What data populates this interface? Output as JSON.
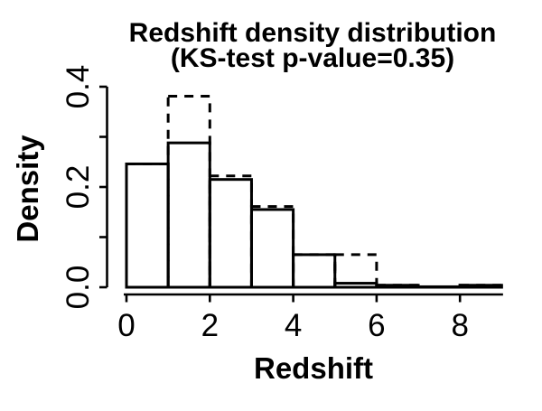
{
  "figure": {
    "title_line1": "Redshift density distribution",
    "title_line2": "(KS-test p-value=0.35)",
    "xlabel": "Redshift",
    "ylabel": "Density"
  },
  "chart_data": {
    "type": "bar",
    "subtype": "histogram-overlay",
    "title": "Redshift density distribution (KS-test p-value=0.35)",
    "xlabel": "Redshift",
    "ylabel": "Density",
    "bin_edges": [
      0,
      1,
      2,
      3,
      4,
      5,
      6,
      7,
      8,
      9
    ],
    "series": [
      {
        "name": "solid-histogram",
        "line_style": "solid",
        "densities": [
          0.246,
          0.288,
          0.215,
          0.155,
          0.065,
          0.008,
          0.004,
          0.001,
          0.004
        ]
      },
      {
        "name": "dashed-histogram",
        "line_style": "dashed",
        "densities": [
          0.246,
          0.381,
          0.222,
          0.161,
          0.065,
          0.065,
          0.004,
          0.001,
          0.004
        ]
      }
    ],
    "xlim": [
      0,
      9
    ],
    "ylim": [
      0,
      0.4
    ],
    "x_ticks": [
      0,
      2,
      4,
      6,
      8
    ],
    "x_tick_labels": [
      "0",
      "2",
      "4",
      "6",
      "8"
    ],
    "y_ticks": [
      0,
      0.1,
      0.2,
      0.3,
      0.4
    ],
    "y_tick_labels": [
      "0.0",
      "",
      "0.2",
      "",
      "0.4"
    ],
    "grid": false,
    "legend": "none",
    "colors": {
      "foreground": "#000000",
      "background": "#ffffff"
    }
  }
}
